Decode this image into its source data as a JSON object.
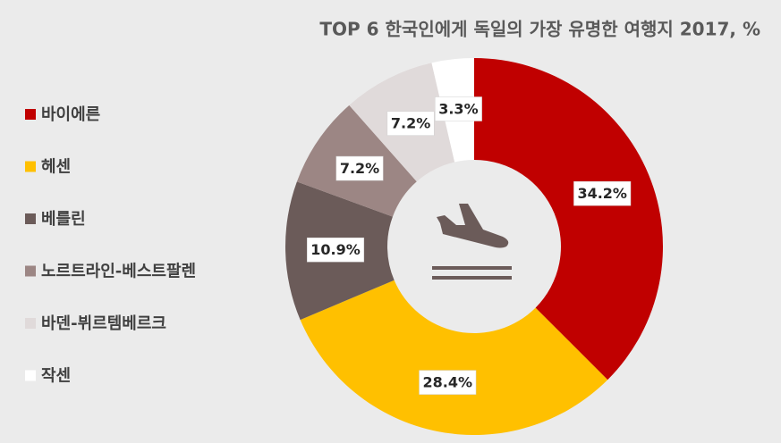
{
  "chart_data": {
    "type": "donut",
    "title": "TOP 6 한국인에게 독일의 가장 유명한 여행지 2017, %",
    "categories": [
      "바이에른",
      "헤센",
      "베를린",
      "노르트라인-베스트팔렌",
      "바덴-뷔르템베르크",
      "작센"
    ],
    "values": [
      34.2,
      28.4,
      10.9,
      7.2,
      7.2,
      3.3
    ],
    "value_labels": [
      "34.2%",
      "28.4%",
      "10.9%",
      "7.2%",
      "7.2%",
      "3.3%"
    ],
    "colors": [
      "#c00000",
      "#ffc000",
      "#6b5b59",
      "#9c8684",
      "#e0dada",
      "#ffffff"
    ],
    "legend": "left"
  }
}
